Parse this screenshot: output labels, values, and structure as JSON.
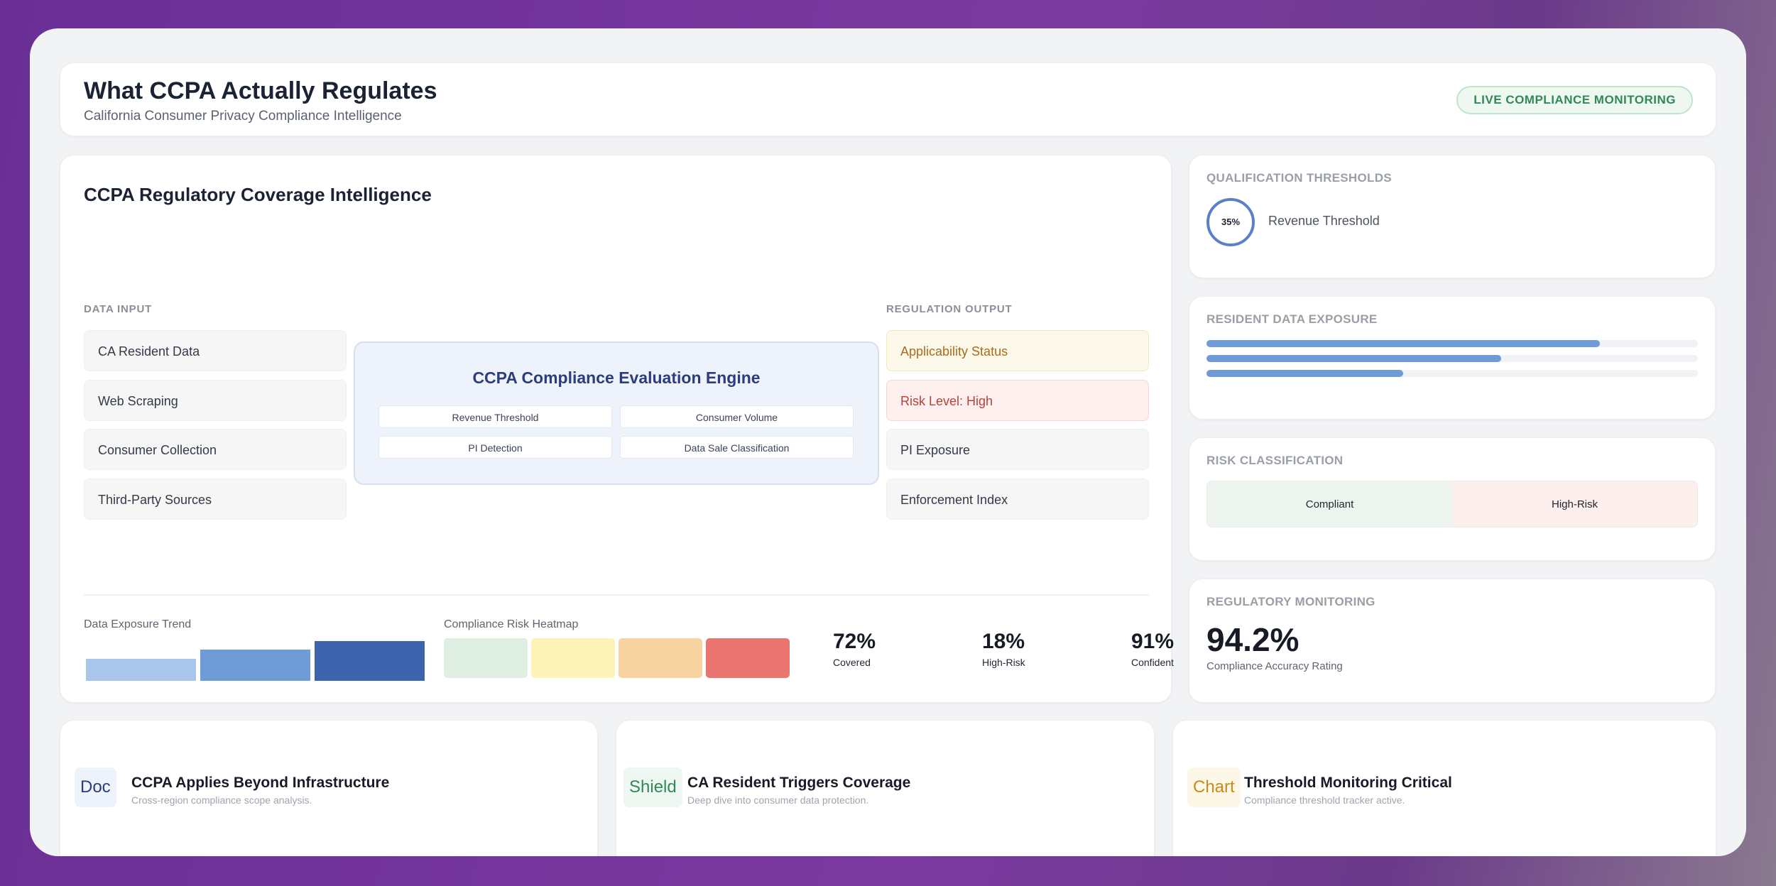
{
  "header": {
    "title": "What CCPA Actually Regulates",
    "subtitle": "California Consumer Privacy Compliance Intelligence",
    "badge": "LIVE COMPLIANCE MONITORING"
  },
  "main": {
    "title": "CCPA Regulatory Coverage Intelligence",
    "input_label": "DATA INPUT",
    "output_label": "REGULATION OUTPUT",
    "inputs": [
      "CA Resident Data",
      "Web Scraping",
      "Consumer Collection",
      "Third-Party Sources"
    ],
    "engine": {
      "title": "CCPA Compliance Evaluation Engine",
      "chips": [
        "Revenue Threshold",
        "Consumer Volume",
        "PI Detection",
        "Data Sale Classification"
      ]
    },
    "outputs": [
      "Applicability Status",
      "Risk Level: High",
      "PI Exposure",
      "Enforcement Index"
    ],
    "trend_label": "Data Exposure Trend",
    "trend_levels": [
      0.55,
      0.78,
      1.0
    ],
    "heatmap_label": "Compliance Risk Heatmap",
    "heatmap_colors": [
      "#dff0e2",
      "#fbf3b8",
      "#f8d3a2",
      "#ea7470"
    ],
    "stats": [
      {
        "value": "72%",
        "label": "Covered"
      },
      {
        "value": "18%",
        "label": "High-Risk"
      },
      {
        "value": "91%",
        "label": "Confident"
      }
    ]
  },
  "qualification": {
    "label": "QUALIFICATION THRESHOLDS",
    "ring_value": "35%",
    "ring_label": "Revenue Threshold"
  },
  "exposure": {
    "label": "RESIDENT DATA EXPOSURE",
    "levels": [
      0.8,
      0.6,
      0.4
    ]
  },
  "risk": {
    "label": "RISK CLASSIFICATION",
    "left": "Compliant",
    "right": "High-Risk"
  },
  "monitoring": {
    "label": "REGULATORY MONITORING",
    "value": "94.2%",
    "caption": "Compliance Accuracy Rating"
  },
  "bottom_cards": [
    {
      "icon": "Doc",
      "icon_name": "document-icon",
      "color": "#2b3d7c",
      "title": "CCPA Applies Beyond Infrastructure",
      "subtitle": "Cross-region compliance scope analysis."
    },
    {
      "icon": "Shield",
      "icon_name": "shield-icon",
      "color": "#2f8a55",
      "title": "CA Resident Triggers Coverage",
      "subtitle": "Deep dive into consumer data protection."
    },
    {
      "icon": "Chart",
      "icon_name": "chart-icon",
      "color": "#c98a16",
      "title": "Threshold Monitoring Critical",
      "subtitle": "Compliance threshold tracker active."
    }
  ]
}
